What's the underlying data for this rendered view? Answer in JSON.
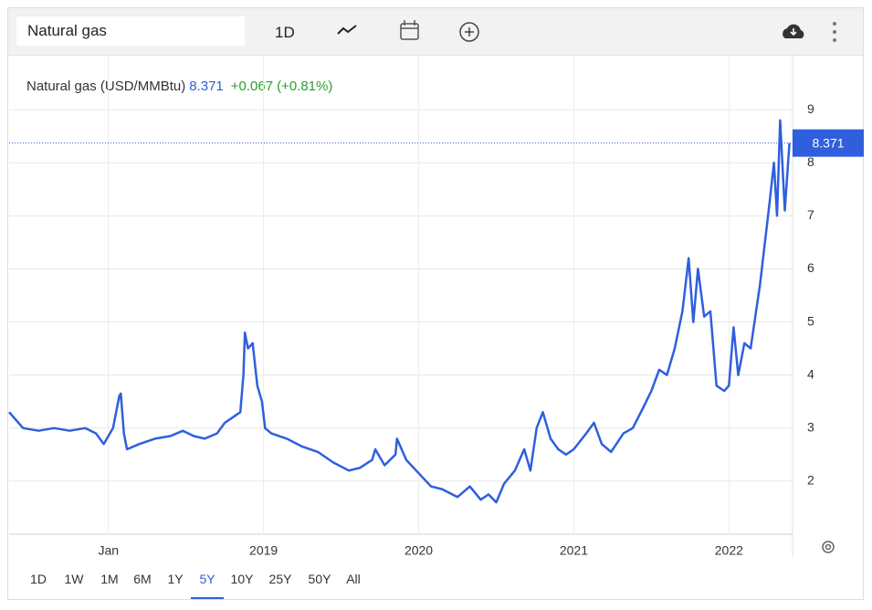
{
  "toolbar": {
    "search": "Natural gas",
    "interval": "1D"
  },
  "header": {
    "name": "Natural gas (USD/MMBtu)",
    "change": "+0.067",
    "change_pct": "(+0.81%)"
  },
  "chart_data": {
    "type": "line",
    "x": [
      2017.36,
      2017.45,
      2017.55,
      2017.65,
      2017.75,
      2017.85,
      2017.92,
      2017.97,
      2018.03,
      2018.07,
      2018.08,
      2018.1,
      2018.12,
      2018.2,
      2018.3,
      2018.4,
      2018.48,
      2018.55,
      2018.62,
      2018.7,
      2018.75,
      2018.8,
      2018.85,
      2018.87,
      2018.88,
      2018.9,
      2018.93,
      2018.96,
      2018.99,
      2019.01,
      2019.05,
      2019.15,
      2019.25,
      2019.35,
      2019.45,
      2019.55,
      2019.62,
      2019.7,
      2019.72,
      2019.78,
      2019.85,
      2019.86,
      2019.92,
      2020.0,
      2020.08,
      2020.15,
      2020.25,
      2020.33,
      2020.4,
      2020.45,
      2020.5,
      2020.55,
      2020.62,
      2020.68,
      2020.72,
      2020.76,
      2020.8,
      2020.85,
      2020.9,
      2020.95,
      2021.0,
      2021.08,
      2021.13,
      2021.18,
      2021.24,
      2021.32,
      2021.38,
      2021.45,
      2021.5,
      2021.55,
      2021.6,
      2021.65,
      2021.7,
      2021.74,
      2021.77,
      2021.8,
      2021.84,
      2021.88,
      2021.92,
      2021.97,
      2022.0,
      2022.03,
      2022.06,
      2022.1,
      2022.14,
      2022.2,
      2022.26,
      2022.29,
      2022.31,
      2022.33,
      2022.36,
      2022.39
    ],
    "series": [
      {
        "name": "Natural gas",
        "color": "#2f5fdc",
        "values": [
          3.3,
          3.0,
          2.95,
          3.0,
          2.95,
          3.0,
          2.9,
          2.7,
          3.0,
          3.6,
          3.65,
          2.9,
          2.6,
          2.7,
          2.8,
          2.85,
          2.95,
          2.85,
          2.8,
          2.9,
          3.1,
          3.2,
          3.3,
          4.0,
          4.8,
          4.5,
          4.6,
          3.8,
          3.5,
          3.0,
          2.9,
          2.8,
          2.65,
          2.55,
          2.35,
          2.2,
          2.25,
          2.4,
          2.6,
          2.3,
          2.5,
          2.8,
          2.4,
          2.15,
          1.9,
          1.85,
          1.7,
          1.9,
          1.65,
          1.75,
          1.6,
          1.95,
          2.2,
          2.6,
          2.2,
          3.0,
          3.3,
          2.8,
          2.6,
          2.5,
          2.6,
          2.9,
          3.1,
          2.7,
          2.55,
          2.9,
          3.0,
          3.4,
          3.7,
          4.1,
          4.0,
          4.5,
          5.2,
          6.2,
          5.0,
          6.0,
          5.1,
          5.2,
          3.8,
          3.7,
          3.8,
          4.9,
          4.0,
          4.6,
          4.5,
          5.7,
          7.2,
          8.0,
          7.0,
          8.8,
          7.1,
          8.371
        ]
      }
    ],
    "xlim": [
      2017.36,
      2022.41
    ],
    "xticks": [
      {
        "value": 2018,
        "label": "Jan"
      },
      2019,
      2020,
      2021,
      2022
    ],
    "ylim": [
      1,
      10
    ],
    "yticks": [
      2,
      3,
      4,
      5,
      6,
      7,
      8,
      9
    ],
    "grid": true
  },
  "ranges": [
    "1D",
    "1W",
    "1M",
    "6M",
    "1Y",
    "5Y",
    "10Y",
    "25Y",
    "50Y",
    "All"
  ],
  "selected_range": 5
}
